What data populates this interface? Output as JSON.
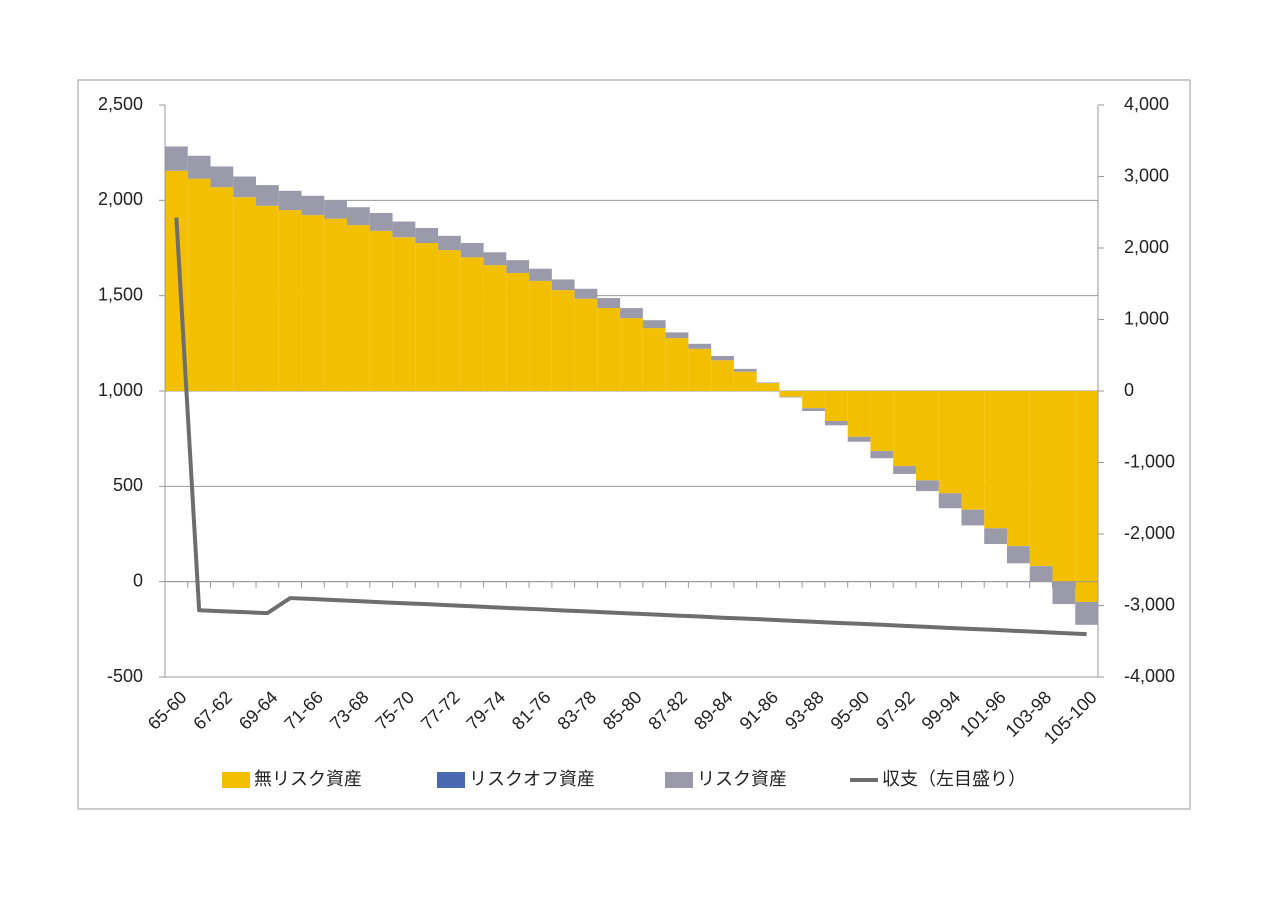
{
  "chart_data": {
    "type": "bar",
    "categories": [
      "65-60",
      null,
      "67-62",
      null,
      "69-64",
      null,
      "71-66",
      null,
      "73-68",
      null,
      "75-70",
      null,
      "77-72",
      null,
      "79-74",
      null,
      "81-76",
      null,
      "83-78",
      null,
      "85-80",
      null,
      "87-82",
      null,
      "89-84",
      null,
      "91-86",
      null,
      "93-88",
      null,
      "95-90",
      null,
      "97-92",
      null,
      "99-94",
      null,
      "101-96",
      null,
      "103-98",
      null,
      "105-100"
    ],
    "series": [
      {
        "name": "無リスク資産",
        "type": "bar",
        "axis": "y2",
        "color": "#f2c000",
        "values": [
          3080,
          2970,
          2850,
          2710,
          2590,
          2530,
          2460,
          2410,
          2320,
          2240,
          2150,
          2070,
          1970,
          1870,
          1760,
          1650,
          1540,
          1410,
          1290,
          1160,
          1020,
          880,
          740,
          590,
          430,
          270,
          110,
          -80,
          -240,
          -420,
          -640,
          -840,
          -1050,
          -1250,
          -1430,
          -1660,
          -1920,
          -2170,
          -2450,
          -2670,
          -2950
        ]
      },
      {
        "name": "リスクオフ資産",
        "type": "bar",
        "axis": "y2",
        "color": "#4a68b0",
        "values": [
          0,
          0,
          0,
          0,
          0,
          0,
          0,
          0,
          0,
          0,
          0,
          0,
          0,
          0,
          0,
          0,
          0,
          0,
          0,
          0,
          0,
          0,
          0,
          0,
          0,
          0,
          0,
          0,
          0,
          0,
          0,
          0,
          0,
          0,
          0,
          0,
          0,
          0,
          0,
          0,
          0
        ]
      },
      {
        "name": "リスク資産",
        "type": "bar",
        "axis": "y2",
        "color": "#9a9aaa",
        "values": [
          340,
          320,
          290,
          290,
          290,
          270,
          270,
          250,
          250,
          250,
          220,
          210,
          200,
          200,
          180,
          180,
          170,
          150,
          140,
          140,
          140,
          110,
          80,
          70,
          60,
          40,
          10,
          -10,
          -40,
          -60,
          -70,
          -100,
          -110,
          -150,
          -210,
          -220,
          -220,
          -240,
          -220,
          -310,
          -320
        ]
      },
      {
        "name": "収支（左目盛り）",
        "type": "line",
        "color": "#6e6e6e",
        "values": [
          1910,
          -150,
          -155,
          -160,
          -165,
          -86,
          -91,
          -97,
          -102,
          -108,
          -113,
          -118,
          -124,
          -129,
          -135,
          -140,
          -145,
          -151,
          -156,
          -162,
          -167,
          -172,
          -178,
          -183,
          -189,
          -194,
          -199,
          -205,
          -210,
          -216,
          -221,
          -226,
          -232,
          -237,
          -243,
          -248,
          -253,
          -259,
          -264,
          -270,
          -275
        ]
      }
    ],
    "ylim": [
      -500,
      2500
    ],
    "yticks": [
      {
        "value": -500,
        "label": "-500"
      },
      0,
      500,
      {
        "value": 1000,
        "label": "1,000"
      },
      {
        "value": 1500,
        "label": "1,500"
      },
      {
        "value": 2000,
        "label": "2,000"
      },
      {
        "value": 2500,
        "label": "2,500"
      }
    ],
    "y2lim": [
      -4000,
      4000
    ],
    "y2ticks": [
      {
        "value": -4000,
        "label": "-4,000"
      },
      {
        "value": -3000,
        "label": "-3,000"
      },
      {
        "value": -2000,
        "label": "-2,000"
      },
      {
        "value": -1000,
        "label": "-1,000"
      },
      0,
      {
        "value": 1000,
        "label": "1,000"
      },
      {
        "value": 2000,
        "label": "2,000"
      },
      {
        "value": 3000,
        "label": "3,000"
      },
      {
        "value": 4000,
        "label": "4,000"
      }
    ],
    "y2_negative_tick_color": "#c00000",
    "grid": true,
    "legend": "bottom"
  }
}
